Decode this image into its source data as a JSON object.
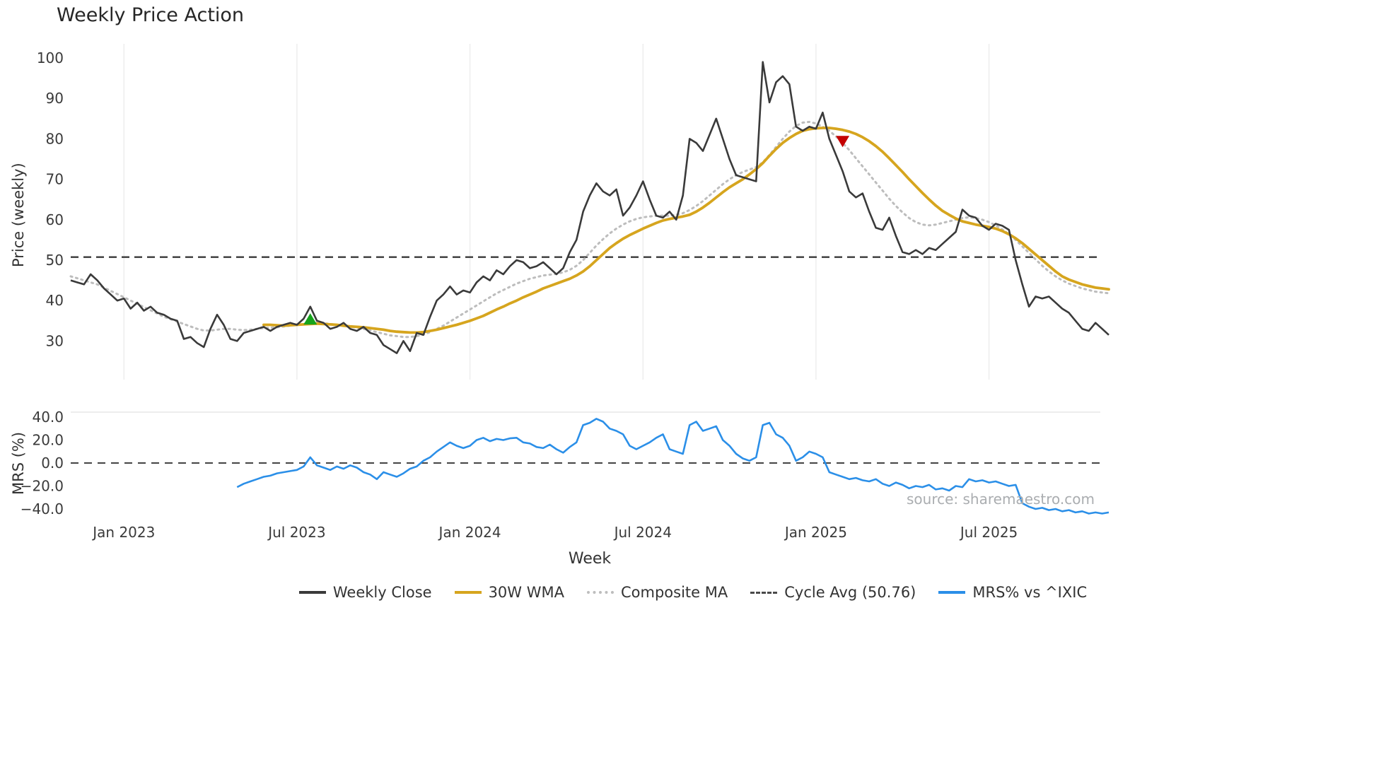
{
  "chart": {
    "title": "Weekly Price Action",
    "price_axis_label": "Price (weekly)",
    "mrs_axis_label": "MRS (%)",
    "x_axis_label": "Week",
    "source": "source: sharemaestro.com"
  },
  "legend": {
    "items": [
      {
        "label": "Weekly Close",
        "color": "#3a3a3a",
        "style": "solid"
      },
      {
        "label": "30W WMA",
        "color": "#d6a51e",
        "style": "solid"
      },
      {
        "label": "Composite MA",
        "color": "#bdbdbd",
        "style": "dotted"
      },
      {
        "label": "Cycle Avg (50.76)",
        "color": "#4a4a4a",
        "style": "dashed"
      },
      {
        "label": "MRS% vs ^IXIC",
        "color": "#2b8fe8",
        "style": "solid"
      }
    ]
  },
  "chart_data": {
    "type": "line",
    "title": "Weekly Price Action",
    "xlabel": "Week",
    "x_is_weekly": true,
    "x_range_note": "weekly points from Nov 2022 to Oct 2025",
    "x_tick_labels": [
      {
        "label": "Jan 2023",
        "index": 8
      },
      {
        "label": "Jul 2023",
        "index": 34
      },
      {
        "label": "Jan 2024",
        "index": 60
      },
      {
        "label": "Jul 2024",
        "index": 86
      },
      {
        "label": "Jan 2025",
        "index": 112
      },
      {
        "label": "Jul 2025",
        "index": 138
      }
    ],
    "panel1": {
      "ylabel": "Price (weekly)",
      "yticks": [
        100,
        90,
        80,
        70,
        60,
        50,
        40,
        30
      ],
      "ylim": [
        21,
        103
      ],
      "grid": "vertical-only",
      "cycle_avg": 50.76,
      "series": [
        {
          "name": "Weekly Close",
          "color": "#3a3a3a",
          "style": "solid",
          "values": [
            45,
            44.5,
            44,
            46.5,
            45,
            43,
            41.5,
            40,
            40.5,
            38,
            39.5,
            37.5,
            38.5,
            37,
            36.5,
            35.5,
            35,
            30.5,
            31,
            29.5,
            28.5,
            33,
            36.5,
            34,
            30.5,
            30,
            32,
            32.5,
            33,
            33.5,
            32.5,
            33.5,
            34,
            34.5,
            34,
            35.5,
            38.5,
            35,
            34.5,
            33,
            33.5,
            34.5,
            33,
            32.5,
            33.5,
            32,
            31.5,
            29,
            28,
            27,
            30,
            27.5,
            32,
            31.5,
            36,
            40,
            41.5,
            43.5,
            41.5,
            42.5,
            42,
            44.5,
            46,
            45,
            47.5,
            46.5,
            48.5,
            50,
            49.5,
            48,
            48.5,
            49.5,
            48,
            46.5,
            48,
            52,
            55,
            62,
            66,
            69,
            67,
            66,
            67.5,
            61,
            63,
            66,
            69.5,
            65,
            61,
            60.5,
            62,
            60,
            66,
            80,
            79,
            77,
            81,
            85,
            80,
            75,
            71,
            70.5,
            70,
            69.5,
            99,
            89,
            94,
            95.5,
            93.5,
            83,
            82,
            83,
            82.5,
            86.5,
            80,
            76,
            72,
            67,
            65.5,
            66.5,
            62,
            58,
            57.5,
            60.5,
            56,
            52,
            51.5,
            52.5,
            51.5,
            53,
            52.5,
            54,
            55.5,
            57,
            62.5,
            61,
            60.5,
            58.5,
            57.5,
            59,
            58.5,
            57.5,
            50,
            44,
            38.5,
            41,
            40.5,
            41,
            39.5,
            38,
            37,
            35,
            33,
            32.5,
            34.5,
            33,
            31.5
          ]
        },
        {
          "name": "30W WMA",
          "color": "#d6a51e",
          "style": "solid",
          "values": [
            null,
            null,
            null,
            null,
            null,
            null,
            null,
            null,
            null,
            null,
            null,
            null,
            null,
            null,
            null,
            null,
            null,
            null,
            null,
            null,
            null,
            null,
            null,
            null,
            null,
            null,
            null,
            null,
            null,
            34,
            34,
            33.9,
            33.8,
            33.9,
            34,
            34.1,
            34.2,
            34.3,
            34.2,
            34.1,
            34,
            33.8,
            33.6,
            33.5,
            33.4,
            33.2,
            33,
            32.8,
            32.5,
            32.3,
            32.2,
            32.1,
            32.1,
            32.2,
            32.5,
            32.8,
            33.2,
            33.6,
            34,
            34.5,
            35,
            35.6,
            36.2,
            37,
            37.8,
            38.5,
            39.3,
            40,
            40.8,
            41.5,
            42.2,
            43,
            43.6,
            44.2,
            44.8,
            45.4,
            46.2,
            47.2,
            48.5,
            50,
            51.5,
            53,
            54.2,
            55.3,
            56.2,
            57,
            57.8,
            58.5,
            59.2,
            59.8,
            60.2,
            60.5,
            60.8,
            61.2,
            62,
            63,
            64.2,
            65.5,
            66.8,
            68,
            69,
            70,
            71.2,
            72.5,
            74,
            75.8,
            77.5,
            79,
            80.2,
            81.2,
            82,
            82.4,
            82.6,
            82.7,
            82.7,
            82.5,
            82.2,
            81.8,
            81.2,
            80.4,
            79.4,
            78.2,
            76.8,
            75.2,
            73.5,
            71.8,
            70,
            68.3,
            66.6,
            65,
            63.5,
            62.2,
            61.2,
            60.3,
            59.6,
            59.2,
            58.8,
            58.5,
            58.2,
            57.8,
            57.2,
            56.4,
            55.4,
            54.2,
            52.8,
            51.4,
            50,
            48.6,
            47.2,
            46,
            45.2,
            44.6,
            44,
            43.6,
            43.2,
            43,
            42.8
          ]
        },
        {
          "name": "Composite MA",
          "color": "#bdbdbd",
          "style": "dotted",
          "values": [
            46,
            45.5,
            45,
            44.5,
            44,
            43.2,
            42.4,
            41.6,
            40.8,
            40,
            39.2,
            38.4,
            37.6,
            36.8,
            36,
            35.4,
            34.8,
            34.2,
            33.6,
            33,
            32.6,
            32.6,
            32.8,
            33,
            33,
            32.8,
            32.7,
            32.8,
            33,
            33.2,
            33.3,
            33.4,
            33.6,
            33.8,
            34,
            34.2,
            34.4,
            34.5,
            34.4,
            34.2,
            34,
            33.8,
            33.6,
            33.3,
            33,
            32.6,
            32.2,
            31.8,
            31.4,
            31.2,
            31,
            31,
            31.2,
            31.6,
            32.2,
            33,
            33.8,
            34.8,
            35.8,
            36.8,
            37.8,
            38.8,
            39.8,
            40.8,
            41.8,
            42.6,
            43.4,
            44.2,
            44.8,
            45.4,
            45.8,
            46.2,
            46.4,
            46.6,
            47,
            47.6,
            48.6,
            50,
            51.8,
            53.6,
            55.2,
            56.6,
            57.8,
            58.8,
            59.6,
            60.2,
            60.6,
            60.8,
            61,
            61,
            61,
            61.2,
            61.6,
            62.4,
            63.4,
            64.6,
            66,
            67.4,
            68.8,
            70,
            71,
            71.8,
            72.4,
            73,
            74.2,
            76,
            78,
            80,
            81.8,
            83.2,
            84,
            84.2,
            83.8,
            83,
            82,
            80.6,
            79,
            77.2,
            75.2,
            73.2,
            71.2,
            69.2,
            67.2,
            65.2,
            63.4,
            61.8,
            60.4,
            59.4,
            58.8,
            58.6,
            58.8,
            59.2,
            59.6,
            60,
            60.4,
            60.6,
            60.4,
            60,
            59.4,
            58.6,
            57.6,
            56.4,
            55,
            53.4,
            51.8,
            50.2,
            48.6,
            47.2,
            46,
            45,
            44.2,
            43.6,
            43,
            42.6,
            42.2,
            42,
            41.8
          ]
        }
      ],
      "markers": [
        {
          "type": "buy-triangle-up",
          "color": "#16a31b",
          "index": 36,
          "value": 35.3
        },
        {
          "type": "sell-triangle-down",
          "color": "#c40000",
          "index": 116,
          "value": 79.5
        }
      ]
    },
    "panel2": {
      "ylabel": "MRS (%)",
      "yticks": [
        40,
        20,
        0,
        -20,
        -40
      ],
      "ytick_labels": [
        "40.0",
        "20.0",
        "0.0",
        "−20.0",
        "−40.0"
      ],
      "zero_line": 0,
      "series": [
        {
          "name": "MRS% vs ^IXIC",
          "color": "#2b8fe8",
          "style": "solid",
          "values": [
            null,
            null,
            null,
            null,
            null,
            null,
            null,
            null,
            null,
            null,
            null,
            null,
            null,
            null,
            null,
            null,
            null,
            null,
            null,
            null,
            null,
            null,
            null,
            null,
            null,
            -21,
            -18,
            -16,
            -14,
            -12,
            -11,
            -9,
            -8,
            -7,
            -6,
            -3,
            5,
            -2,
            -4,
            -6,
            -3,
            -5,
            -2,
            -4,
            -8,
            -10,
            -14,
            -8,
            -10,
            -12,
            -9,
            -5,
            -3,
            2,
            5,
            10,
            14,
            18,
            15,
            13,
            15,
            20,
            22,
            19,
            21,
            20,
            21.5,
            22,
            18,
            17,
            14,
            13,
            16,
            12,
            9,
            14,
            18,
            33,
            35,
            38.5,
            36,
            30,
            28,
            25,
            15,
            12,
            15,
            18,
            22,
            25,
            12,
            10,
            8,
            33,
            36,
            28,
            30,
            32,
            20,
            15,
            8,
            4,
            2,
            5,
            33,
            35,
            25,
            22,
            15,
            2,
            5,
            10,
            8,
            5,
            -8,
            -10,
            -12,
            -14,
            -13,
            -15,
            -16,
            -14,
            -18,
            -20,
            -17,
            -19,
            -22,
            -20,
            -21,
            -19,
            -23,
            -22,
            -24,
            -20,
            -21,
            -14,
            -16,
            -15,
            -17,
            -16,
            -18,
            -20,
            -19,
            -35,
            -38,
            -40,
            -39,
            -41,
            -40,
            -42,
            -41,
            -43,
            -42,
            -44,
            -43,
            -44,
            -43
          ]
        }
      ]
    }
  }
}
